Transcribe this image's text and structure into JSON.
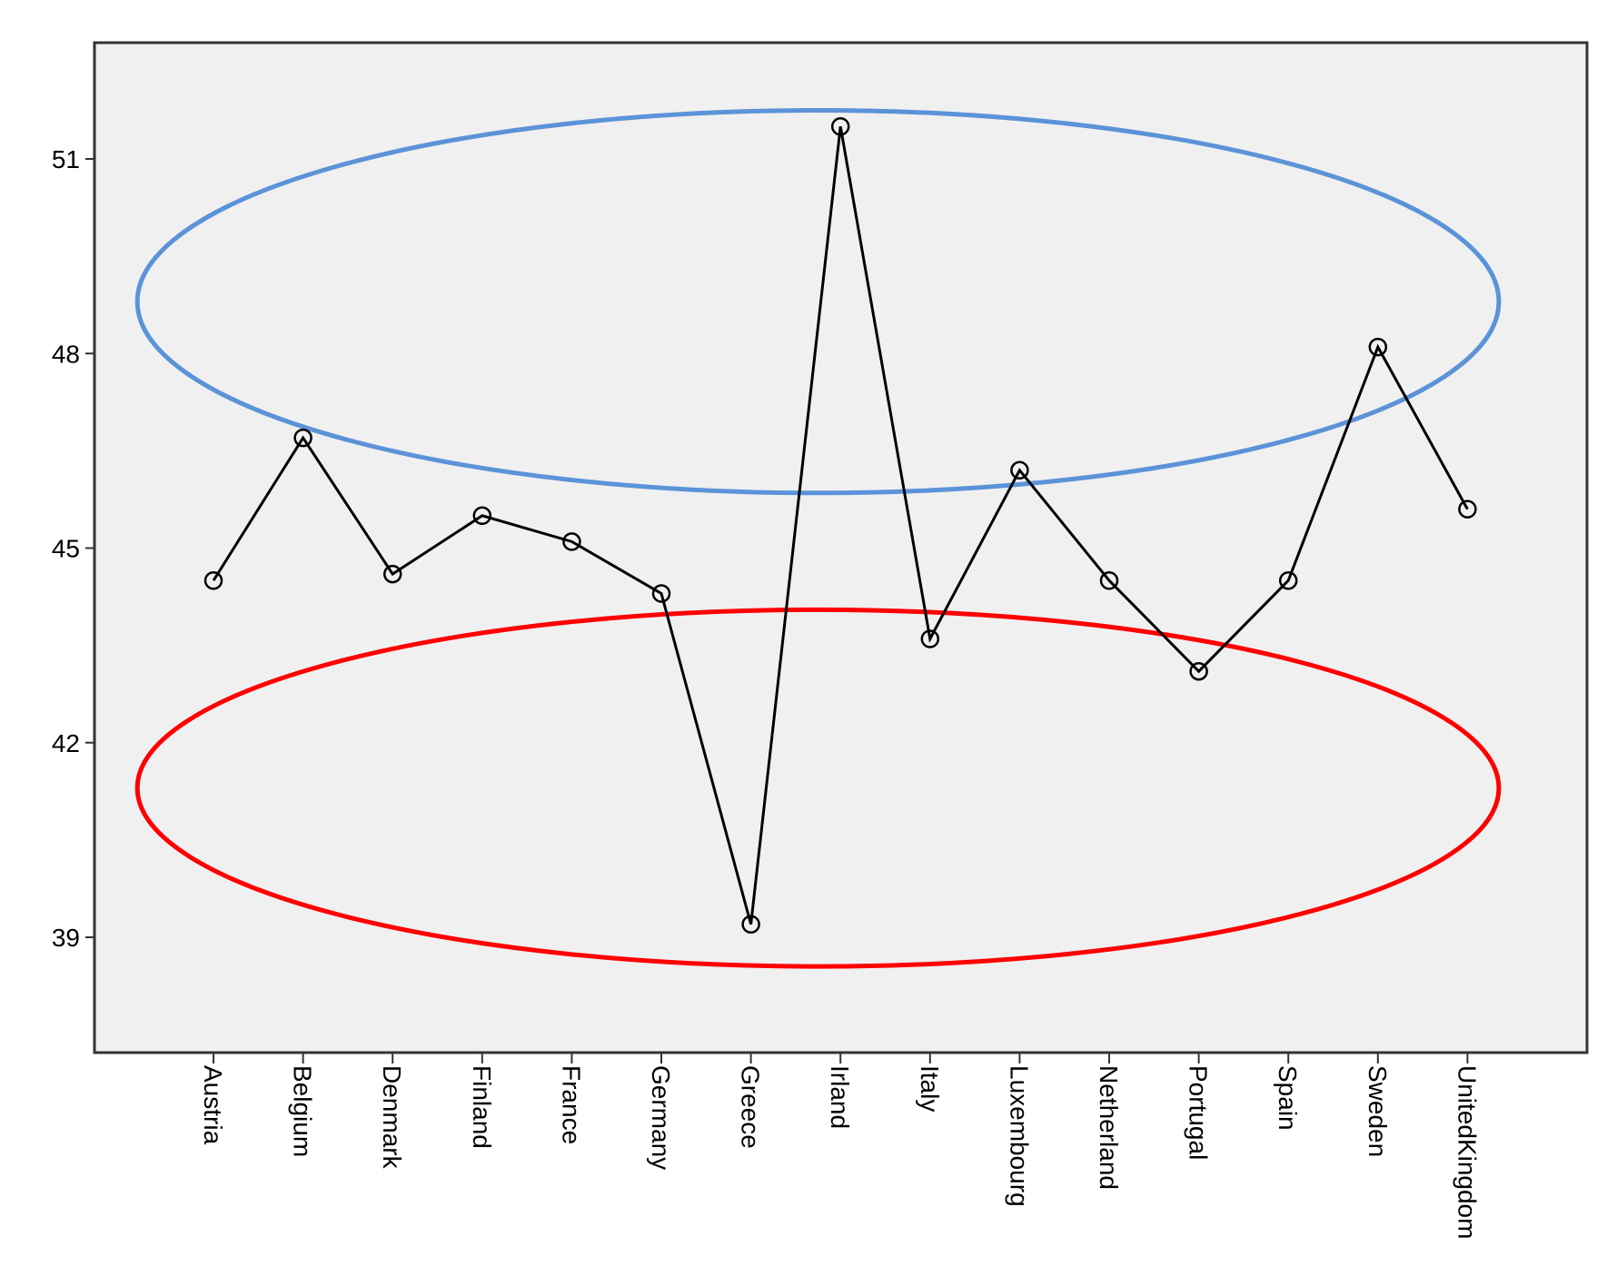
{
  "chart_data": {
    "type": "line",
    "categories": [
      "Austria",
      "Belgium",
      "Denmark",
      "Finland",
      "France",
      "Germany",
      "Greece",
      "Irland",
      "Italy",
      "Luxembourg",
      "Netherland",
      "Portugal",
      "Spain",
      "Sweden",
      "UnitedKingdom"
    ],
    "series": [
      {
        "values": [
          44.5,
          46.7,
          44.6,
          45.5,
          45.1,
          44.3,
          39.2,
          51.5,
          43.6,
          46.2,
          44.5,
          43.1,
          44.5,
          48.1,
          45.6
        ]
      }
    ],
    "yticks": [
      39,
      42,
      45,
      48,
      51
    ],
    "ylim": [
      37,
      53
    ],
    "grid": false,
    "line_color": "#000000",
    "background": "#f0f0f0",
    "marker": "open-circle",
    "annotations": [
      {
        "type": "ellipse",
        "color": "#5b93d8",
        "center_x_index": 6.75,
        "center_y": 48.8,
        "rx_categories": 7.6,
        "ry_units": 2.95
      },
      {
        "type": "ellipse",
        "color": "#ff0000",
        "center_x_index": 6.75,
        "center_y": 41.3,
        "rx_categories": 7.6,
        "ry_units": 2.75
      }
    ]
  }
}
